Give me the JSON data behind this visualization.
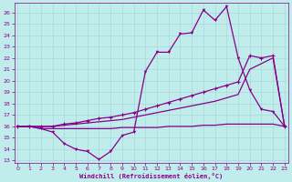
{
  "xlabel": "Windchill (Refroidissement éolien,°C)",
  "x_ticks": [
    0,
    1,
    2,
    3,
    4,
    5,
    6,
    7,
    8,
    9,
    10,
    11,
    12,
    13,
    14,
    15,
    16,
    17,
    18,
    19,
    20,
    21,
    22,
    23
  ],
  "y_ticks": [
    13,
    14,
    15,
    16,
    17,
    18,
    19,
    20,
    21,
    22,
    23,
    24,
    25,
    26
  ],
  "ylim": [
    12.8,
    26.8
  ],
  "xlim": [
    -0.3,
    23.3
  ],
  "bg_color": "#c0ecec",
  "grid_color": "#a8d8d8",
  "line_color": "#880088",
  "line1_y": [
    16.0,
    16.0,
    15.8,
    15.5,
    14.5,
    14.0,
    13.8,
    13.1,
    13.8,
    15.2,
    15.5,
    20.8,
    22.5,
    22.5,
    24.1,
    24.2,
    26.2,
    25.3,
    26.5,
    22.0,
    19.2,
    17.5,
    17.3,
    16.0
  ],
  "line2_y": [
    16.0,
    16.0,
    16.0,
    16.0,
    16.2,
    16.3,
    16.5,
    16.7,
    16.8,
    17.0,
    17.2,
    17.5,
    17.8,
    18.1,
    18.4,
    18.7,
    19.0,
    19.3,
    19.6,
    19.9,
    22.2,
    22.0,
    22.2,
    16.0
  ],
  "line3_y": [
    16.0,
    16.0,
    16.0,
    16.0,
    16.1,
    16.2,
    16.3,
    16.4,
    16.5,
    16.6,
    16.8,
    17.0,
    17.2,
    17.4,
    17.6,
    17.8,
    18.0,
    18.2,
    18.5,
    18.8,
    21.0,
    21.5,
    22.0,
    16.0
  ],
  "line4_y": [
    16.0,
    16.0,
    15.8,
    15.8,
    15.8,
    15.8,
    15.8,
    15.8,
    15.8,
    15.9,
    15.9,
    15.9,
    15.9,
    16.0,
    16.0,
    16.0,
    16.1,
    16.1,
    16.2,
    16.2,
    16.2,
    16.2,
    16.2,
    16.0
  ]
}
